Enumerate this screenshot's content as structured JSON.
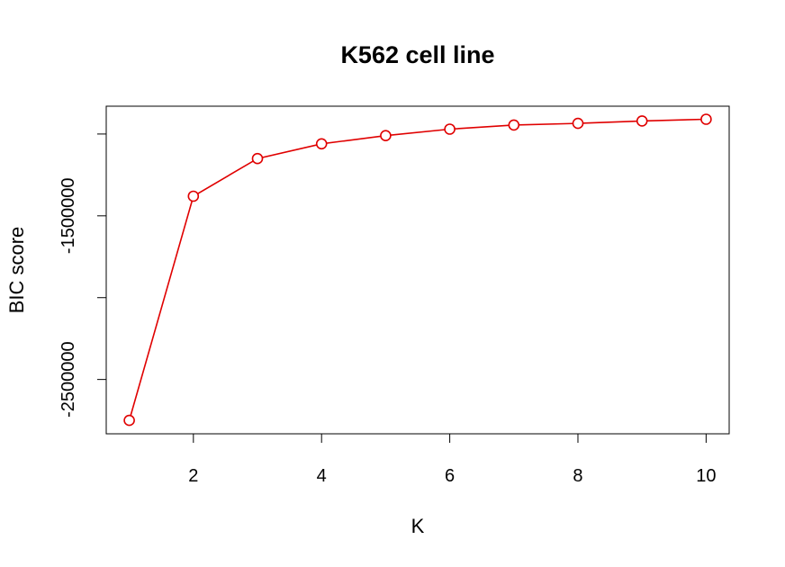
{
  "chart_data": {
    "type": "line",
    "title": "K562 cell line",
    "xlabel": "K",
    "ylabel": "BIC score",
    "x": [
      1,
      2,
      3,
      4,
      5,
      6,
      7,
      8,
      9,
      10
    ],
    "series": [
      {
        "values": [
          -2750000,
          -1380000,
          -1150000,
          -1060000,
          -1010000,
          -970000,
          -945000,
          -935000,
          -920000,
          -910000
        ],
        "color": "#e00000",
        "marker": "open-circle"
      }
    ],
    "xticks": [
      2,
      4,
      6,
      8,
      10
    ],
    "xtick_labels": [
      "2",
      "4",
      "6",
      "8",
      "10"
    ],
    "yticks": [
      -2500000,
      -2000000,
      -1500000,
      -1000000
    ],
    "ytick_labels": [
      "-2500000",
      "",
      "-1500000",
      ""
    ],
    "xlim": [
      0.64,
      10.36
    ],
    "ylim": [
      -2832000,
      -830000
    ],
    "grid": false,
    "legend": "none"
  }
}
